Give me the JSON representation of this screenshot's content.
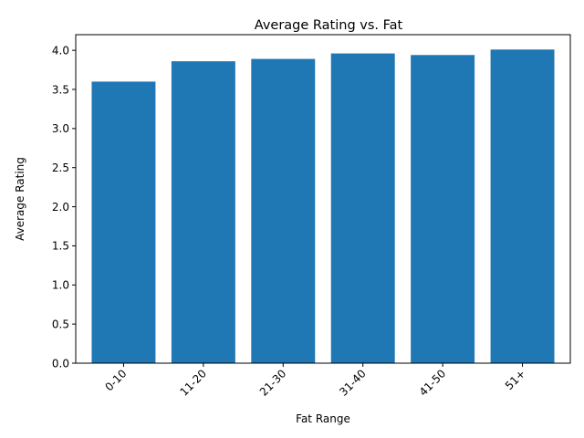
{
  "chart_data": {
    "type": "bar",
    "title": "Average Rating vs. Fat",
    "xlabel": "Fat Range",
    "ylabel": "Average Rating",
    "categories": [
      "0-10",
      "11-20",
      "21-30",
      "31-40",
      "41-50",
      "51+"
    ],
    "values": [
      3.6,
      3.86,
      3.89,
      3.96,
      3.94,
      4.01
    ],
    "ylim": [
      0,
      4.2
    ],
    "yticks": [
      "0.0",
      "0.5",
      "1.0",
      "1.5",
      "2.0",
      "2.5",
      "3.0",
      "3.5",
      "4.0"
    ],
    "bar_color": "#1f77b4",
    "grid": false,
    "legend": "none"
  }
}
